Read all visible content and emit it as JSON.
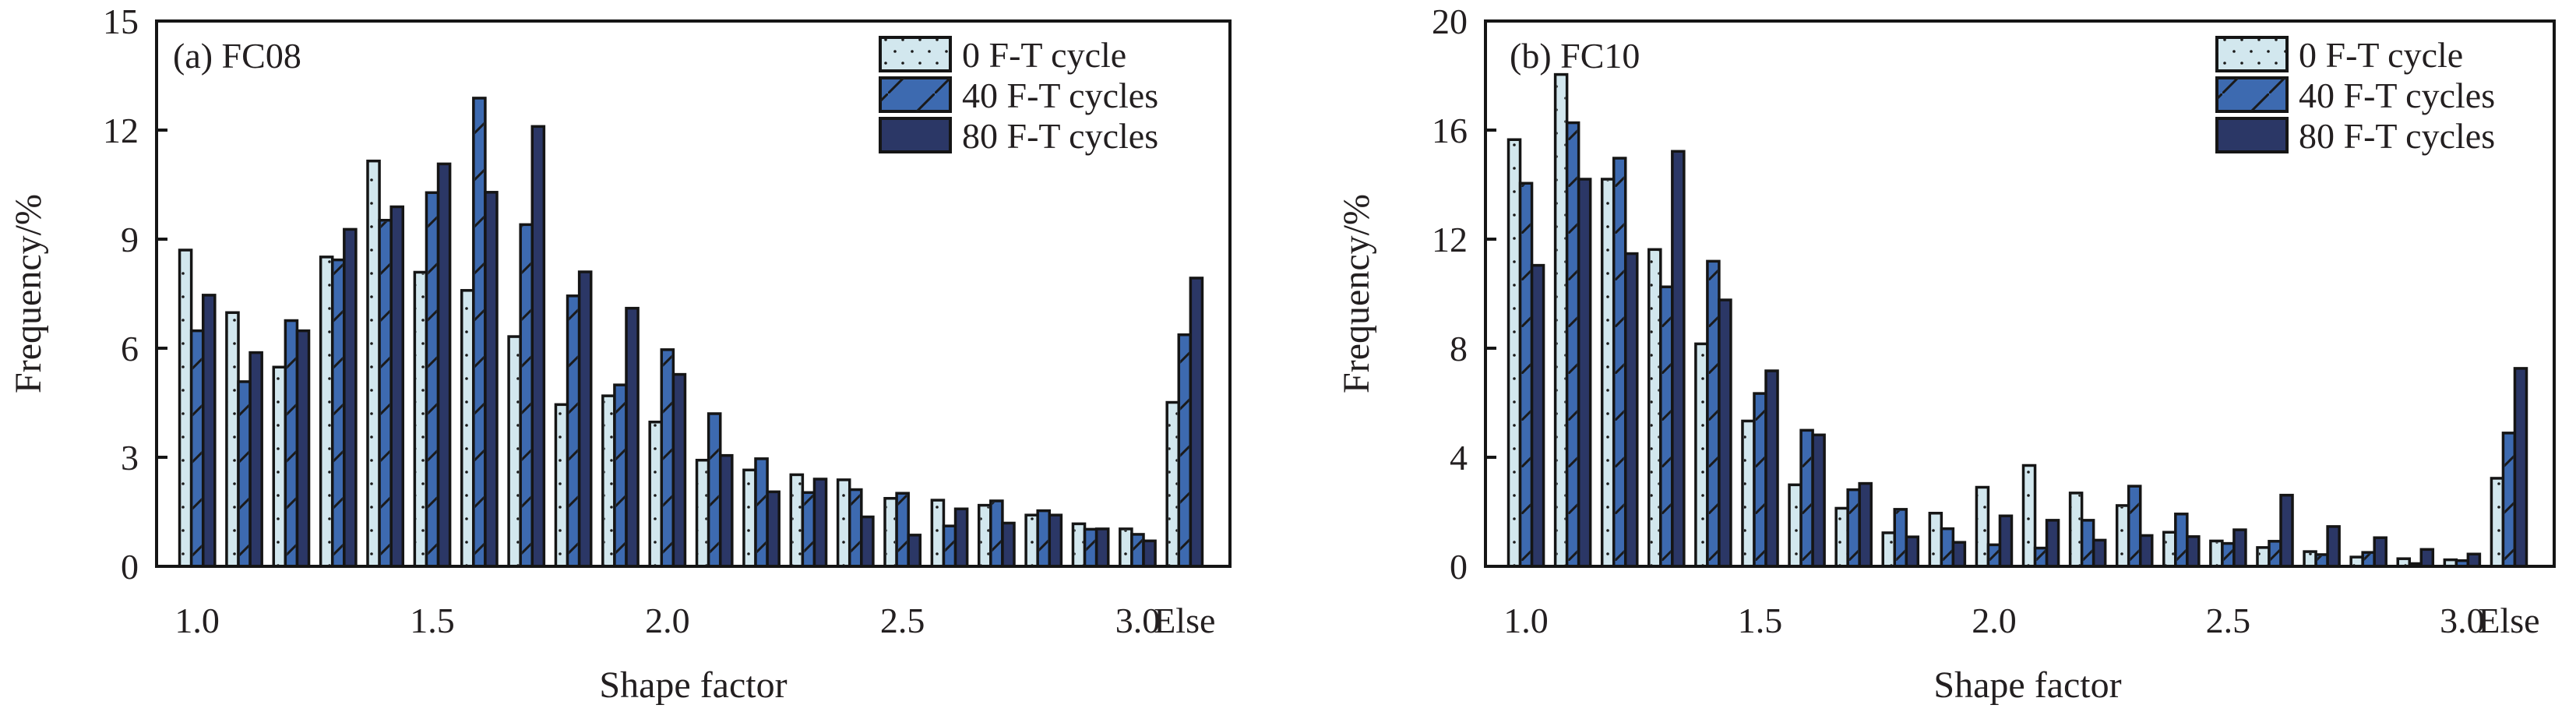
{
  "colors": {
    "series_0": "#d2e7ee",
    "series_1": "#3d6ab0",
    "series_2": "#2b3766",
    "outline": "#151515",
    "text": "#231f20"
  },
  "chart_data": [
    {
      "type": "bar",
      "panel_label": "(a) FC08",
      "title": "",
      "xlabel": "Shape factor",
      "ylabel": "Frequency/%",
      "ylim": [
        0,
        15
      ],
      "yticks": [
        0,
        3,
        6,
        9,
        12,
        15
      ],
      "ytick_labels": [
        "0",
        "3",
        "6",
        "9",
        "12",
        "15"
      ],
      "categories": [
        "1.0",
        "1.1",
        "1.2",
        "1.3",
        "1.4",
        "1.5",
        "1.6",
        "1.7",
        "1.8",
        "1.9",
        "2.0",
        "2.1",
        "2.2",
        "2.3",
        "2.4",
        "2.5",
        "2.6",
        "2.7",
        "2.8",
        "2.9",
        "3.0",
        "Else"
      ],
      "xtick_labels": [
        {
          "category": "1.0",
          "label": "1.0"
        },
        {
          "category": "1.5",
          "label": "1.5"
        },
        {
          "category": "2.0",
          "label": "2.0"
        },
        {
          "category": "2.5",
          "label": "2.5"
        },
        {
          "category": "3.0",
          "label": "3.0"
        },
        {
          "category": "Else",
          "label": "Else"
        }
      ],
      "legend": {
        "position": "top-right"
      },
      "grid": false,
      "series": [
        {
          "name": "0 F-T cycle",
          "pattern": "dots",
          "values": [
            8.7,
            6.98,
            5.48,
            8.51,
            11.15,
            8.09,
            7.59,
            6.32,
            4.45,
            4.69,
            3.97,
            2.92,
            2.65,
            2.52,
            2.38,
            1.87,
            1.82,
            1.68,
            1.41,
            1.17,
            1.03,
            4.51
          ]
        },
        {
          "name": "40 F-T cycles",
          "pattern": "hatch",
          "values": [
            6.48,
            5.08,
            6.76,
            8.43,
            9.52,
            10.28,
            12.88,
            9.4,
            7.44,
            4.99,
            5.96,
            4.2,
            2.96,
            2.03,
            2.11,
            2.01,
            1.11,
            1.8,
            1.53,
            1.02,
            0.88,
            6.37
          ]
        },
        {
          "name": "80 F-T cycles",
          "pattern": "solid",
          "values": [
            7.46,
            5.88,
            6.48,
            9.27,
            9.89,
            11.07,
            10.29,
            12.1,
            8.1,
            7.1,
            5.28,
            3.05,
            2.05,
            2.4,
            1.36,
            0.86,
            1.58,
            1.19,
            1.41,
            1.03,
            0.7,
            7.93
          ]
        }
      ]
    },
    {
      "type": "bar",
      "panel_label": "(b) FC10",
      "title": "",
      "xlabel": "Shape factor",
      "ylabel": "Frequency/%",
      "ylim": [
        0,
        20
      ],
      "yticks": [
        0,
        4,
        8,
        12,
        16,
        20
      ],
      "ytick_labels": [
        "0",
        "4",
        "8",
        "12",
        "16",
        "20"
      ],
      "categories": [
        "1.0",
        "1.1",
        "1.2",
        "1.3",
        "1.4",
        "1.5",
        "1.6",
        "1.7",
        "1.8",
        "1.9",
        "2.0",
        "2.1",
        "2.2",
        "2.3",
        "2.4",
        "2.5",
        "2.6",
        "2.7",
        "2.8",
        "2.9",
        "3.0",
        "Else"
      ],
      "xtick_labels": [
        {
          "category": "1.0",
          "label": "1.0"
        },
        {
          "category": "1.5",
          "label": "1.5"
        },
        {
          "category": "2.0",
          "label": "2.0"
        },
        {
          "category": "2.5",
          "label": "2.5"
        },
        {
          "category": "3.0",
          "label": "3.0"
        },
        {
          "category": "Else",
          "label": "Else"
        }
      ],
      "legend": {
        "position": "top-right"
      },
      "grid": false,
      "series": [
        {
          "name": "0 F-T cycle",
          "pattern": "dots",
          "values": [
            15.65,
            18.04,
            14.2,
            11.62,
            8.16,
            5.33,
            2.99,
            2.13,
            1.23,
            1.95,
            2.9,
            3.7,
            2.69,
            2.23,
            1.25,
            0.93,
            0.69,
            0.54,
            0.34,
            0.28,
            0.24,
            3.23
          ]
        },
        {
          "name": "40 F-T cycles",
          "pattern": "hatch",
          "values": [
            14.05,
            16.27,
            14.97,
            10.25,
            11.19,
            6.34,
            4.99,
            2.81,
            2.09,
            1.38,
            0.79,
            0.67,
            1.69,
            2.94,
            1.92,
            0.84,
            0.92,
            0.43,
            0.51,
            0.1,
            0.21,
            4.89
          ]
        },
        {
          "name": "80 F-T cycles",
          "pattern": "solid",
          "values": [
            11.04,
            14.2,
            11.47,
            15.22,
            9.77,
            7.17,
            4.82,
            3.04,
            1.08,
            0.88,
            1.85,
            1.69,
            0.96,
            1.13,
            1.09,
            1.34,
            2.61,
            1.46,
            1.05,
            0.62,
            0.45,
            7.26
          ]
        }
      ]
    }
  ]
}
